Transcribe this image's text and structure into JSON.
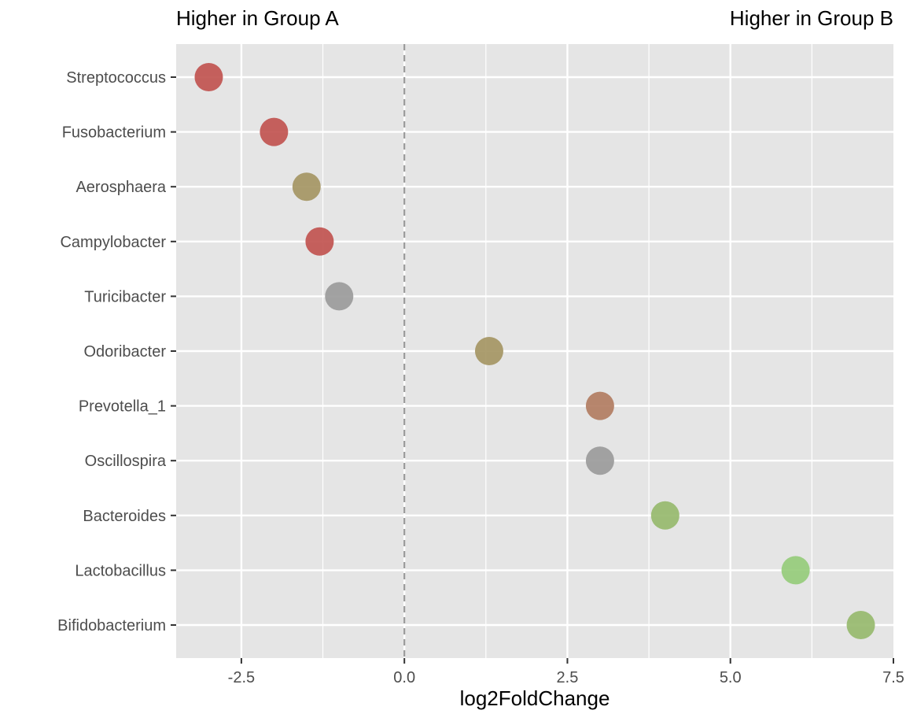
{
  "chart_data": {
    "type": "scatter",
    "group_label_left": "Higher in Group A",
    "group_label_right": "Higher in Group B",
    "xlabel": "log2FoldChange",
    "ylabel": "",
    "xlim": [
      -3.5,
      7.5
    ],
    "x_ticks": [
      -2.5,
      0.0,
      2.5,
      5.0,
      7.5
    ],
    "x_tick_labels": [
      "-2.5",
      "0.0",
      "2.5",
      "5.0",
      "7.5"
    ],
    "reference_line_x": 0,
    "grid": true,
    "points": [
      {
        "taxon": "Streptococcus",
        "x": -3.0,
        "color": "#c0504d"
      },
      {
        "taxon": "Fusobacterium",
        "x": -2.0,
        "color": "#c0504d"
      },
      {
        "taxon": "Aerosphaera",
        "x": -1.5,
        "color": "#a39461"
      },
      {
        "taxon": "Campylobacter",
        "x": -1.3,
        "color": "#c0504d"
      },
      {
        "taxon": "Turicibacter",
        "x": -1.0,
        "color": "#999999"
      },
      {
        "taxon": "Odoribacter",
        "x": 1.3,
        "color": "#a39461"
      },
      {
        "taxon": "Prevotella_1",
        "x": 3.0,
        "color": "#b07a5e"
      },
      {
        "taxon": "Oscillospira",
        "x": 3.0,
        "color": "#999999"
      },
      {
        "taxon": "Bacteroides",
        "x": 4.0,
        "color": "#95b86a"
      },
      {
        "taxon": "Lactobacillus",
        "x": 6.0,
        "color": "#93cb78"
      },
      {
        "taxon": "Bifidobacterium",
        "x": 7.0,
        "color": "#95b86a"
      }
    ]
  },
  "colors": {
    "panel_background": "#e5e5e5",
    "grid_line": "#ffffff",
    "reference_line": "#999999",
    "tick_text": "#4d4d4d"
  }
}
